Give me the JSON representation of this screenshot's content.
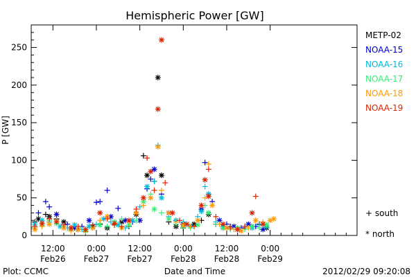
{
  "chart_data": {
    "type": "scatter",
    "title": "Hemispheric Power [GW]",
    "xlabel": "Date and Time",
    "ylabel": "P [GW]",
    "x_unit": "hours since 2012-02-26 00:00",
    "xlim": [
      6,
      96
    ],
    "ylim": [
      0,
      280
    ],
    "yticks": [
      0,
      50,
      100,
      150,
      200,
      250
    ],
    "xticks": [
      {
        "x": 12,
        "label": "12:00",
        "sub": "Feb26"
      },
      {
        "x": 24,
        "label": "0:00",
        "sub": "Feb27"
      },
      {
        "x": 36,
        "label": "12:00",
        "sub": "Feb27"
      },
      {
        "x": 48,
        "label": "0:00",
        "sub": "Feb28"
      },
      {
        "x": 60,
        "label": "12:00",
        "sub": "Feb28"
      },
      {
        "x": 72,
        "label": "0:00",
        "sub": "Feb29"
      }
    ],
    "legend_position": "right",
    "marker_legend": [
      {
        "symbol": "+",
        "label": "south"
      },
      {
        "symbol": "*",
        "label": "north"
      }
    ],
    "series": [
      {
        "name": "METP-02",
        "color": "#000000",
        "points": [
          [
            7,
            18,
            "s"
          ],
          [
            8,
            22,
            "n"
          ],
          [
            10,
            28,
            "s"
          ],
          [
            11,
            25,
            "n"
          ],
          [
            13,
            22,
            "s"
          ],
          [
            15,
            18,
            "n"
          ],
          [
            17,
            10,
            "s"
          ],
          [
            19,
            8,
            "n"
          ],
          [
            21,
            6,
            "s"
          ],
          [
            23,
            12,
            "n"
          ],
          [
            25,
            15,
            "s"
          ],
          [
            27,
            10,
            "n"
          ],
          [
            29,
            14,
            "s"
          ],
          [
            31,
            18,
            "n"
          ],
          [
            33,
            12,
            "s"
          ],
          [
            35,
            28,
            "n"
          ],
          [
            37,
            106,
            "s"
          ],
          [
            38,
            80,
            "n"
          ],
          [
            40,
            72,
            "s"
          ],
          [
            41,
            210,
            "n"
          ],
          [
            42,
            80,
            "n"
          ],
          [
            44,
            18,
            "s"
          ],
          [
            46,
            12,
            "n"
          ],
          [
            48,
            10,
            "s"
          ],
          [
            51,
            15,
            "n"
          ],
          [
            53,
            20,
            "s"
          ],
          [
            55,
            28,
            "n"
          ],
          [
            57,
            15,
            "s"
          ],
          [
            59,
            10,
            "n"
          ],
          [
            61,
            12,
            "s"
          ],
          [
            63,
            8,
            "n"
          ],
          [
            65,
            10,
            "s"
          ],
          [
            67,
            12,
            "n"
          ],
          [
            69,
            15,
            "s"
          ],
          [
            71,
            10,
            "n"
          ]
        ]
      },
      {
        "name": "NOAA-15",
        "color": "#0000cc",
        "points": [
          [
            8,
            30,
            "s"
          ],
          [
            10,
            45,
            "s"
          ],
          [
            11,
            38,
            "s"
          ],
          [
            13,
            28,
            "n"
          ],
          [
            16,
            15,
            "s"
          ],
          [
            18,
            10,
            "n"
          ],
          [
            20,
            12,
            "s"
          ],
          [
            22,
            20,
            "n"
          ],
          [
            24,
            44,
            "s"
          ],
          [
            25,
            45,
            "s"
          ],
          [
            27,
            60,
            "s"
          ],
          [
            28,
            25,
            "n"
          ],
          [
            30,
            36,
            "s"
          ],
          [
            32,
            20,
            "n"
          ],
          [
            34,
            18,
            "s"
          ],
          [
            36,
            20,
            "n"
          ],
          [
            38,
            62,
            "s"
          ],
          [
            39,
            75,
            "s"
          ],
          [
            40,
            88,
            "n"
          ],
          [
            42,
            55,
            "s"
          ],
          [
            44,
            30,
            "n"
          ],
          [
            46,
            20,
            "s"
          ],
          [
            48,
            15,
            "n"
          ],
          [
            50,
            12,
            "s"
          ],
          [
            53,
            35,
            "n"
          ],
          [
            54,
            97,
            "s"
          ],
          [
            55,
            55,
            "s"
          ],
          [
            56,
            45,
            "s"
          ],
          [
            58,
            20,
            "n"
          ],
          [
            60,
            15,
            "s"
          ],
          [
            62,
            12,
            "n"
          ],
          [
            64,
            10,
            "s"
          ],
          [
            66,
            15,
            "n"
          ],
          [
            68,
            12,
            "s"
          ],
          [
            70,
            8,
            "n"
          ]
        ]
      },
      {
        "name": "NOAA-16",
        "color": "#00bbdd",
        "points": [
          [
            7,
            15,
            "n"
          ],
          [
            9,
            20,
            "n"
          ],
          [
            11,
            18,
            "s"
          ],
          [
            14,
            12,
            "n"
          ],
          [
            16,
            10,
            "s"
          ],
          [
            18,
            14,
            "n"
          ],
          [
            20,
            8,
            "s"
          ],
          [
            22,
            12,
            "n"
          ],
          [
            24,
            15,
            "s"
          ],
          [
            26,
            22,
            "n"
          ],
          [
            28,
            18,
            "s"
          ],
          [
            30,
            14,
            "n"
          ],
          [
            32,
            10,
            "s"
          ],
          [
            34,
            20,
            "n"
          ],
          [
            36,
            38,
            "s"
          ],
          [
            38,
            65,
            "n"
          ],
          [
            40,
            72,
            "s"
          ],
          [
            41,
            120,
            "s"
          ],
          [
            42,
            50,
            "n"
          ],
          [
            44,
            25,
            "s"
          ],
          [
            46,
            20,
            "n"
          ],
          [
            48,
            18,
            "s"
          ],
          [
            50,
            12,
            "n"
          ],
          [
            52,
            25,
            "s"
          ],
          [
            53,
            32,
            "n"
          ],
          [
            54,
            65,
            "s"
          ],
          [
            55,
            55,
            "n"
          ],
          [
            57,
            18,
            "s"
          ],
          [
            59,
            12,
            "n"
          ],
          [
            61,
            10,
            "s"
          ],
          [
            63,
            8,
            "n"
          ],
          [
            65,
            12,
            "s"
          ],
          [
            67,
            10,
            "n"
          ],
          [
            69,
            14,
            "s"
          ],
          [
            71,
            12,
            "n"
          ]
        ]
      },
      {
        "name": "NOAA-17",
        "color": "#33ee77",
        "points": [
          [
            7,
            10,
            "s"
          ],
          [
            9,
            14,
            "n"
          ],
          [
            11,
            20,
            "s"
          ],
          [
            13,
            16,
            "n"
          ],
          [
            15,
            12,
            "s"
          ],
          [
            17,
            8,
            "n"
          ],
          [
            19,
            10,
            "s"
          ],
          [
            21,
            6,
            "n"
          ],
          [
            23,
            10,
            "s"
          ],
          [
            25,
            14,
            "n"
          ],
          [
            27,
            12,
            "s"
          ],
          [
            29,
            18,
            "n"
          ],
          [
            31,
            22,
            "s"
          ],
          [
            33,
            14,
            "n"
          ],
          [
            35,
            20,
            "s"
          ],
          [
            37,
            45,
            "n"
          ],
          [
            39,
            55,
            "s"
          ],
          [
            40,
            35,
            "n"
          ],
          [
            42,
            30,
            "s"
          ],
          [
            44,
            22,
            "n"
          ],
          [
            46,
            15,
            "s"
          ],
          [
            48,
            12,
            "n"
          ],
          [
            50,
            10,
            "s"
          ],
          [
            52,
            14,
            "n"
          ],
          [
            54,
            40,
            "s"
          ],
          [
            55,
            30,
            "n"
          ],
          [
            57,
            15,
            "s"
          ],
          [
            59,
            10,
            "n"
          ],
          [
            61,
            8,
            "s"
          ],
          [
            63,
            10,
            "n"
          ],
          [
            65,
            8,
            "s"
          ],
          [
            67,
            12,
            "n"
          ],
          [
            69,
            10,
            "s"
          ],
          [
            71,
            14,
            "n"
          ]
        ]
      },
      {
        "name": "NOAA-18",
        "color": "#ff9900",
        "points": [
          [
            7,
            8,
            "n"
          ],
          [
            9,
            12,
            "s"
          ],
          [
            11,
            15,
            "n"
          ],
          [
            13,
            20,
            "s"
          ],
          [
            15,
            10,
            "n"
          ],
          [
            17,
            6,
            "s"
          ],
          [
            19,
            8,
            "n"
          ],
          [
            21,
            5,
            "s"
          ],
          [
            23,
            10,
            "n"
          ],
          [
            25,
            20,
            "s"
          ],
          [
            27,
            25,
            "n"
          ],
          [
            29,
            15,
            "s"
          ],
          [
            31,
            10,
            "n"
          ],
          [
            33,
            18,
            "s"
          ],
          [
            35,
            30,
            "n"
          ],
          [
            37,
            40,
            "s"
          ],
          [
            39,
            50,
            "n"
          ],
          [
            41,
            118,
            "n"
          ],
          [
            42,
            60,
            "s"
          ],
          [
            44,
            30,
            "n"
          ],
          [
            46,
            18,
            "s"
          ],
          [
            48,
            14,
            "n"
          ],
          [
            50,
            12,
            "s"
          ],
          [
            52,
            20,
            "n"
          ],
          [
            54,
            50,
            "s"
          ],
          [
            55,
            95,
            "s"
          ],
          [
            56,
            40,
            "n"
          ],
          [
            58,
            15,
            "s"
          ],
          [
            60,
            10,
            "n"
          ],
          [
            62,
            8,
            "s"
          ],
          [
            64,
            6,
            "n"
          ],
          [
            66,
            10,
            "s"
          ],
          [
            68,
            20,
            "n"
          ],
          [
            70,
            18,
            "s"
          ],
          [
            72,
            20,
            "n"
          ],
          [
            73,
            22,
            "n"
          ]
        ]
      },
      {
        "name": "NOAA-19",
        "color": "#dd2200",
        "points": [
          [
            7,
            12,
            "s"
          ],
          [
            9,
            16,
            "n"
          ],
          [
            11,
            22,
            "s"
          ],
          [
            13,
            18,
            "n"
          ],
          [
            15,
            14,
            "s"
          ],
          [
            17,
            10,
            "n"
          ],
          [
            19,
            12,
            "s"
          ],
          [
            21,
            8,
            "n"
          ],
          [
            23,
            14,
            "s"
          ],
          [
            25,
            30,
            "n"
          ],
          [
            27,
            22,
            "s"
          ],
          [
            29,
            16,
            "n"
          ],
          [
            31,
            12,
            "s"
          ],
          [
            33,
            20,
            "n"
          ],
          [
            35,
            35,
            "s"
          ],
          [
            37,
            50,
            "n"
          ],
          [
            38,
            103,
            "s"
          ],
          [
            39,
            85,
            "n"
          ],
          [
            40,
            60,
            "s"
          ],
          [
            41,
            168,
            "n"
          ],
          [
            42,
            260,
            "n"
          ],
          [
            43,
            70,
            "s"
          ],
          [
            45,
            30,
            "n"
          ],
          [
            47,
            20,
            "s"
          ],
          [
            49,
            15,
            "n"
          ],
          [
            51,
            12,
            "s"
          ],
          [
            53,
            40,
            "n"
          ],
          [
            54,
            74,
            "n"
          ],
          [
            55,
            88,
            "s"
          ],
          [
            55,
            52,
            "n"
          ],
          [
            57,
            25,
            "s"
          ],
          [
            59,
            15,
            "n"
          ],
          [
            61,
            10,
            "s"
          ],
          [
            63,
            8,
            "n"
          ],
          [
            65,
            12,
            "s"
          ],
          [
            67,
            30,
            "n"
          ],
          [
            68,
            52,
            "s"
          ],
          [
            70,
            15,
            "n"
          ]
        ]
      }
    ]
  },
  "footer": {
    "left": "Plot: CCMC",
    "center": "Date and Time",
    "right": "2012/02/29 09:20:08"
  }
}
